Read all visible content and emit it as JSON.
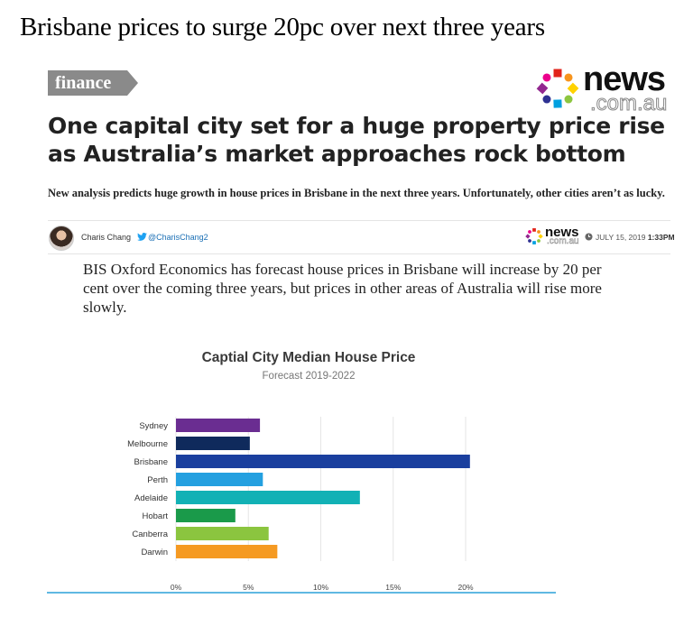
{
  "page": {
    "headline": "Brisbane prices to surge 20pc over next three years"
  },
  "article": {
    "section": "finance",
    "logo": {
      "news": "news",
      "domain": ".com.au"
    },
    "headline": "One capital city set for a huge property price rise as Australia’s market approaches rock bottom",
    "standfirst": "New analysis predicts huge growth in house prices in Brisbane in the next three years. Unfortunately, other cities aren’t as lucky.",
    "author": "Charis Chang",
    "twitter_handle": "@CharisChang2",
    "date": "JULY 15, 2019",
    "time": "1:33PM",
    "body": "BIS Oxford Economics has forecast house prices in Brisbane will increase by 20 per cent over the coming three years, but prices in other areas of Australia will rise more slowly."
  },
  "icons": {
    "twitter": "twitter-bird-icon",
    "clock": "clock-icon",
    "avatar": "author-avatar"
  },
  "logo_colors": [
    "#e2231a",
    "#f7941d",
    "#ffd200",
    "#8dc63f",
    "#00a0e0",
    "#2e3192",
    "#92278f",
    "#ec008c"
  ],
  "chart_data": {
    "type": "bar",
    "orientation": "horizontal",
    "title": "Captial City Median House Price",
    "subtitle": "Forecast 2019-2022",
    "categories": [
      "Sydney",
      "Melbourne",
      "Brisbane",
      "Perth",
      "Adelaide",
      "Hobart",
      "Canberra",
      "Darwin"
    ],
    "values": [
      5.8,
      5.1,
      20.3,
      6.0,
      12.7,
      4.1,
      6.4,
      7.0
    ],
    "colors": [
      "#6a2d91",
      "#0f2a5c",
      "#1a3f9e",
      "#24a0e0",
      "#12b1b5",
      "#1a9a4a",
      "#8bc53f",
      "#f59a22"
    ],
    "xticks": [
      "0%",
      "5%",
      "10%",
      "15%",
      "20%"
    ],
    "xlim": [
      0,
      20
    ],
    "grid": true,
    "legend": "none"
  }
}
